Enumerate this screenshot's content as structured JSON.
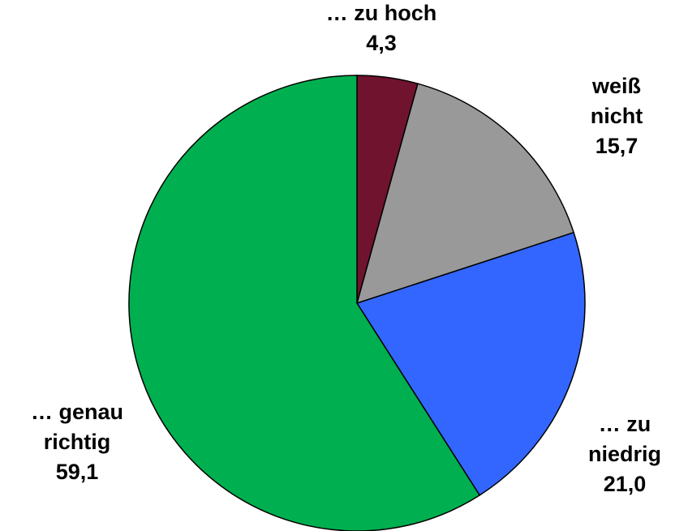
{
  "chart_data": {
    "type": "pie",
    "categories": [
      "… zu hoch",
      "weiß nicht",
      "… zu niedrig",
      "… genau richtig"
    ],
    "values": [
      4.3,
      15.7,
      21.0,
      59.1
    ],
    "value_labels": [
      "4,3",
      "15,7",
      "21,0",
      "59,1"
    ],
    "colors": [
      "#70132f",
      "#999999",
      "#3366ff",
      "#00b050"
    ]
  }
}
